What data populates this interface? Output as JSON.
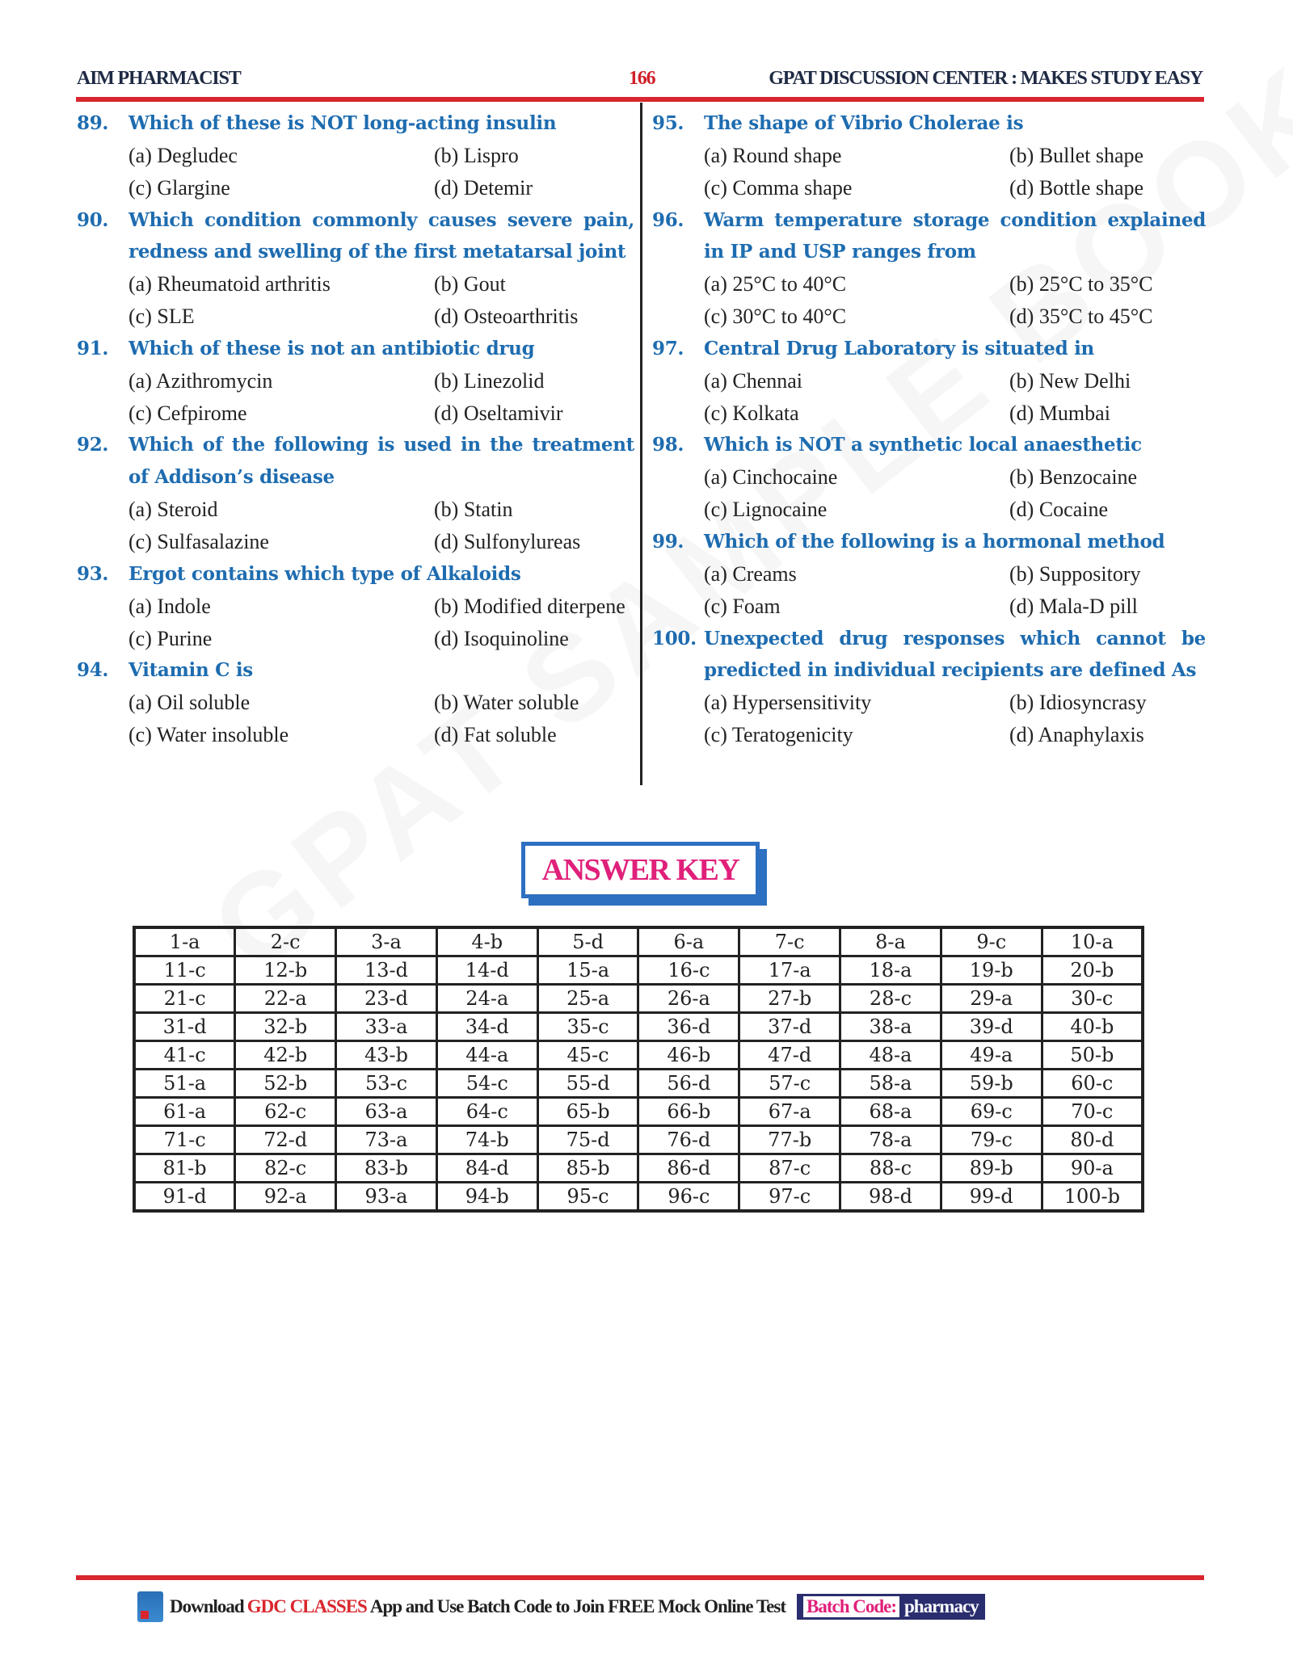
{
  "header": {
    "left": "AIM PHARMACIST",
    "page": "166",
    "right": "GPAT DISCUSSION CENTER : MAKES STUDY EASY"
  },
  "watermark": "GPAT SAMPLE BOOK",
  "left_questions": [
    {
      "num": "89.",
      "text": "Which of these is NOT long-acting insulin",
      "options": [
        "(a) Degludec",
        "(b) Lispro",
        "(c) Glargine",
        "(d) Detemir"
      ]
    },
    {
      "num": "90.",
      "text": "Which condition commonly causes severe pain, redness and swelling of the first metatarsal joint",
      "options": [
        "(a) Rheumatoid arthritis",
        "(b) Gout",
        "(c) SLE",
        "(d) Osteoarthritis"
      ]
    },
    {
      "num": "91.",
      "text": "Which of these is not an antibiotic drug",
      "options": [
        "(a) Azithromycin",
        "(b) Linezolid",
        "(c) Cefpirome",
        "(d) Oseltamivir"
      ]
    },
    {
      "num": "92.",
      "text": "Which of the following is used in the treatment of Addison’s disease",
      "options": [
        "(a) Steroid",
        "(b) Statin",
        "(c) Sulfasalazine",
        "(d) Sulfonylureas"
      ]
    },
    {
      "num": "93.",
      "text": "Ergot contains which type of Alkaloids",
      "options": [
        "(a) Indole",
        "(b) Modified diterpene",
        "(c) Purine",
        "(d) Isoquinoline"
      ]
    },
    {
      "num": "94.",
      "text": "Vitamin C is",
      "options": [
        "(a) Oil soluble",
        "(b) Water soluble",
        "(c) Water insoluble",
        "(d) Fat soluble"
      ]
    }
  ],
  "right_questions": [
    {
      "num": "95.",
      "text": "The shape of Vibrio Cholerae is",
      "options": [
        "(a) Round shape",
        "(b) Bullet shape",
        "(c) Comma shape",
        "(d) Bottle shape"
      ]
    },
    {
      "num": "96.",
      "text": "Warm temperature storage condition explained in IP and USP ranges from",
      "options": [
        "(a) 25°C to 40°C",
        "(b) 25°C to 35°C",
        "(c) 30°C to 40°C",
        "(d) 35°C to 45°C"
      ]
    },
    {
      "num": "97.",
      "text": "Central Drug Laboratory is situated in",
      "options": [
        "(a) Chennai",
        "(b) New Delhi",
        "(c) Kolkata",
        "(d) Mumbai"
      ]
    },
    {
      "num": "98.",
      "text": "Which is NOT a synthetic local anaesthetic",
      "options": [
        "(a) Cinchocaine",
        "(b) Benzocaine",
        "(c) Lignocaine",
        "(d) Cocaine"
      ]
    },
    {
      "num": "99.",
      "text": "Which of the following is a hormonal method",
      "options": [
        "(a) Creams",
        "(b) Suppository",
        "(c) Foam",
        "(d) Mala-D pill"
      ]
    },
    {
      "num": "100.",
      "text": "Unexpected drug responses which cannot be predicted in individual recipients are defined As",
      "options": [
        "(a) Hypersensitivity",
        "(b) Idiosyncrasy",
        "(c) Teratogenicity",
        "(d) Anaphylaxis"
      ]
    }
  ],
  "answer_key": {
    "title": "ANSWER KEY",
    "rows": [
      [
        "1-a",
        "2-c",
        "3-a",
        "4-b",
        "5-d",
        "6-a",
        "7-c",
        "8-a",
        "9-c",
        "10-a"
      ],
      [
        "11-c",
        "12-b",
        "13-d",
        "14-d",
        "15-a",
        "16-c",
        "17-a",
        "18-a",
        "19-b",
        "20-b"
      ],
      [
        "21-c",
        "22-a",
        "23-d",
        "24-a",
        "25-a",
        "26-a",
        "27-b",
        "28-c",
        "29-a",
        "30-c"
      ],
      [
        "31-d",
        "32-b",
        "33-a",
        "34-d",
        "35-c",
        "36-d",
        "37-d",
        "38-a",
        "39-d",
        "40-b"
      ],
      [
        "41-c",
        "42-b",
        "43-b",
        "44-a",
        "45-c",
        "46-b",
        "47-d",
        "48-a",
        "49-a",
        "50-b"
      ],
      [
        "51-a",
        "52-b",
        "53-c",
        "54-c",
        "55-d",
        "56-d",
        "57-c",
        "58-a",
        "59-b",
        "60-c"
      ],
      [
        "61-a",
        "62-c",
        "63-a",
        "64-c",
        "65-b",
        "66-b",
        "67-a",
        "68-a",
        "69-c",
        "70-c"
      ],
      [
        "71-c",
        "72-d",
        "73-a",
        "74-b",
        "75-d",
        "76-d",
        "77-b",
        "78-a",
        "79-c",
        "80-d"
      ],
      [
        "81-b",
        "82-c",
        "83-b",
        "84-d",
        "85-b",
        "86-d",
        "87-c",
        "88-c",
        "89-b",
        "90-a"
      ],
      [
        "91-d",
        "92-a",
        "93-a",
        "94-b",
        "95-c",
        "96-c",
        "97-c",
        "98-d",
        "99-d",
        "100-b"
      ]
    ]
  },
  "footer": {
    "download": "Download",
    "brand": "GDC CLASSES",
    "rest": "App and Use Batch Code to Join FREE Mock Online Test",
    "batch_label": "Batch Code:",
    "batch_code": "pharmacy"
  },
  "colors": {
    "question": "#1e6cb0",
    "accent_red": "#d9262e",
    "key_title": "#e0207a",
    "key_border": "#2d6fc0"
  }
}
